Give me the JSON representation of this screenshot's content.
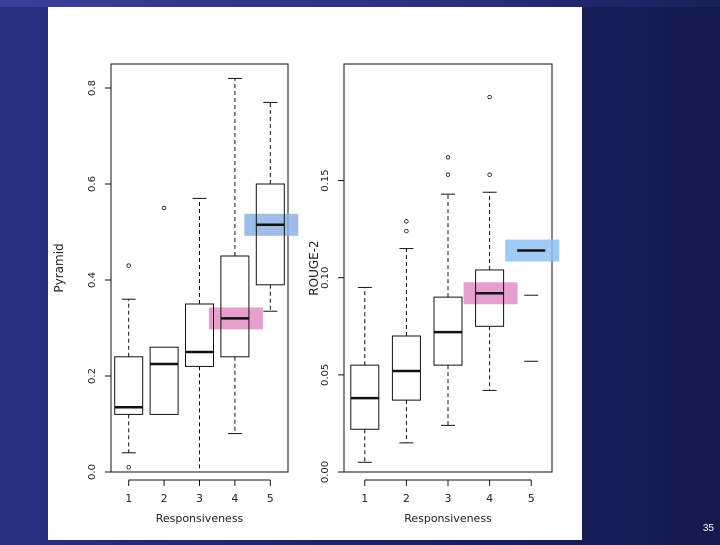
{
  "slide": {
    "page_number": "35"
  },
  "chart_data": [
    {
      "type": "box",
      "title": "",
      "xlabel": "Responsiveness",
      "ylabel": "Pyramid",
      "categories": [
        "1",
        "2",
        "3",
        "4",
        "5"
      ],
      "ylim": [
        0.0,
        0.85
      ],
      "yticks": [
        "0.0",
        "0.2",
        "0.4",
        "0.6",
        "0.8"
      ],
      "boxes": [
        {
          "cat": "1",
          "whisker_low": 0.04,
          "q1": 0.12,
          "median": 0.135,
          "q3": 0.24,
          "whisker_high": 0.36,
          "outliers": [
            0.01,
            0.43
          ]
        },
        {
          "cat": "2",
          "whisker_low": null,
          "q1": 0.12,
          "median": 0.225,
          "q3": 0.26,
          "whisker_high": null,
          "outliers": [
            0.55
          ]
        },
        {
          "cat": "3",
          "whisker_low": 0.0,
          "q1": 0.22,
          "median": 0.25,
          "q3": 0.35,
          "whisker_high": 0.57,
          "outliers": []
        },
        {
          "cat": "4",
          "whisker_low": 0.08,
          "q1": 0.24,
          "median": 0.32,
          "q3": 0.45,
          "whisker_high": 0.82,
          "outliers": []
        },
        {
          "cat": "5",
          "whisker_low": 0.335,
          "q1": 0.39,
          "median": 0.515,
          "q3": 0.6,
          "whisker_high": 0.77,
          "outliers": []
        }
      ],
      "highlights": [
        {
          "cat": "4",
          "value": 0.32,
          "color": "#e28fc6"
        },
        {
          "cat": "5",
          "value": 0.515,
          "color": "#8fb2e6"
        }
      ]
    },
    {
      "type": "box",
      "title": "",
      "xlabel": "Responsiveness",
      "ylabel": "ROUGE-2",
      "categories": [
        "1",
        "2",
        "3",
        "4",
        "5"
      ],
      "ylim": [
        0.0,
        0.21
      ],
      "yticks": [
        "0.00",
        "0.05",
        "0.10",
        "0.15"
      ],
      "boxes": [
        {
          "cat": "1",
          "whisker_low": 0.005,
          "q1": 0.022,
          "median": 0.038,
          "q3": 0.055,
          "whisker_high": 0.095,
          "outliers": []
        },
        {
          "cat": "2",
          "whisker_low": 0.015,
          "q1": 0.037,
          "median": 0.052,
          "q3": 0.07,
          "whisker_high": 0.115,
          "outliers": [
            0.124,
            0.129
          ]
        },
        {
          "cat": "3",
          "whisker_low": 0.024,
          "q1": 0.055,
          "median": 0.072,
          "q3": 0.09,
          "whisker_high": 0.143,
          "outliers": [
            0.153,
            0.162
          ]
        },
        {
          "cat": "4",
          "whisker_low": 0.042,
          "q1": 0.075,
          "median": 0.092,
          "q3": 0.104,
          "whisker_high": 0.144,
          "outliers": [
            0.153,
            0.193
          ]
        },
        {
          "cat": "5",
          "whisker_low": null,
          "q1": null,
          "median": 0.114,
          "q3": null,
          "whisker_high": null,
          "outliers": [],
          "extra_lines": [
            0.091,
            0.057
          ]
        }
      ],
      "highlights": [
        {
          "cat": "4",
          "value": 0.092,
          "color": "#e28fc6"
        },
        {
          "cat": "5",
          "value": 0.114,
          "color": "#8fc0f5"
        }
      ]
    }
  ]
}
